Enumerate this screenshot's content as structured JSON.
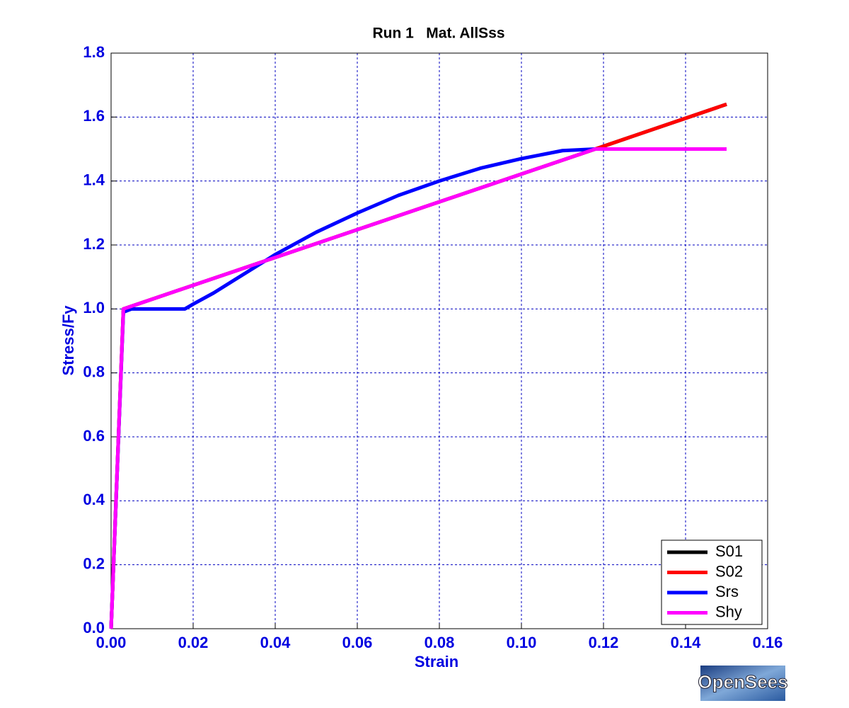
{
  "chart_data": {
    "type": "line",
    "title": "Run 1   Mat. AllSss",
    "x_label": "Strain",
    "y_label": "Stress/Fy",
    "logo": "OpenSees",
    "xlim": [
      0,
      0.16
    ],
    "ylim": [
      0,
      1.8
    ],
    "xticks": [
      {
        "value": 0,
        "label": "0.00"
      },
      0.02,
      0.04,
      0.06,
      0.08,
      {
        "value": 0.1,
        "label": "0.10"
      },
      0.12,
      0.14,
      0.16
    ],
    "yticks": [
      {
        "value": 0,
        "label": "0.0"
      },
      0.2,
      0.4,
      0.6,
      0.8,
      {
        "value": 1,
        "label": "1.0"
      },
      1.2,
      1.4,
      1.6,
      1.8
    ],
    "grid": true,
    "legend": "lower-right",
    "series": [
      {
        "name": "S01",
        "color": "#000000",
        "x": [
          0,
          0.003,
          0.118,
          0.15
        ],
        "values": [
          0,
          1.0,
          1.5,
          1.64
        ]
      },
      {
        "name": "S02",
        "color": "#ff0000",
        "x": [
          0,
          0.003,
          0.118,
          0.15
        ],
        "values": [
          0,
          1.0,
          1.5,
          1.64
        ]
      },
      {
        "name": "Srs",
        "color": "#0000ff",
        "x": [
          0,
          0.003,
          0.005,
          0.018,
          0.02,
          0.025,
          0.03,
          0.04,
          0.05,
          0.06,
          0.07,
          0.08,
          0.09,
          0.1,
          0.11,
          0.118
        ],
        "values": [
          0,
          0.99,
          1.0,
          1.0,
          1.015,
          1.05,
          1.09,
          1.17,
          1.24,
          1.3,
          1.355,
          1.4,
          1.44,
          1.47,
          1.495,
          1.5
        ]
      },
      {
        "name": "Shy",
        "color": "#ff00ff",
        "x": [
          0,
          0.003,
          0.118,
          0.15
        ],
        "values": [
          0,
          1.0,
          1.5,
          1.5
        ]
      }
    ]
  }
}
